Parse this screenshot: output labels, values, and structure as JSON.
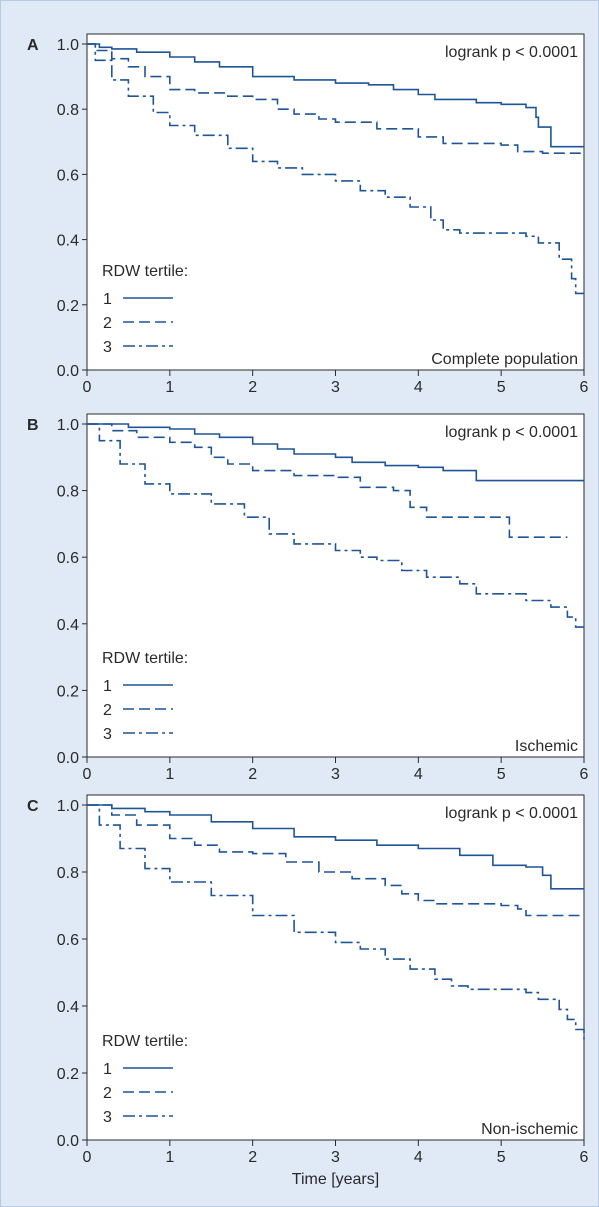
{
  "chart_data": [
    {
      "type": "line",
      "panel_letter": "A",
      "annotation": "logrank p < 0.0001",
      "subtitle": "Complete population",
      "xlabel": "",
      "ylabel": "",
      "xlim": [
        0,
        6
      ],
      "ylim": [
        0,
        1
      ],
      "xticks": [
        "0",
        "1",
        "2",
        "3",
        "4",
        "5",
        "6"
      ],
      "yticks": [
        "0.0",
        "0.2",
        "0.4",
        "0.6",
        "0.8",
        "1.0"
      ],
      "legend_title": "RDW tertile:",
      "legend_position": "bottom-left",
      "grid": false,
      "series": [
        {
          "name": "1",
          "style": "solid",
          "points": [
            [
              0,
              1.0
            ],
            [
              0.15,
              0.99
            ],
            [
              0.3,
              0.985
            ],
            [
              0.6,
              0.975
            ],
            [
              1.0,
              0.96
            ],
            [
              1.3,
              0.945
            ],
            [
              1.6,
              0.93
            ],
            [
              2.0,
              0.9
            ],
            [
              2.5,
              0.89
            ],
            [
              3.0,
              0.88
            ],
            [
              3.4,
              0.875
            ],
            [
              3.7,
              0.86
            ],
            [
              4.0,
              0.845
            ],
            [
              4.2,
              0.83
            ],
            [
              4.7,
              0.82
            ],
            [
              5.0,
              0.815
            ],
            [
              5.3,
              0.805
            ],
            [
              5.42,
              0.775
            ],
            [
              5.45,
              0.745
            ],
            [
              5.55,
              0.745
            ],
            [
              5.6,
              0.685
            ],
            [
              6.0,
              0.685
            ]
          ]
        },
        {
          "name": "2",
          "style": "dashed",
          "points": [
            [
              0,
              1.0
            ],
            [
              0.1,
              0.98
            ],
            [
              0.3,
              0.955
            ],
            [
              0.5,
              0.93
            ],
            [
              0.7,
              0.9
            ],
            [
              1.0,
              0.86
            ],
            [
              1.3,
              0.85
            ],
            [
              1.7,
              0.84
            ],
            [
              2.0,
              0.83
            ],
            [
              2.3,
              0.8
            ],
            [
              2.5,
              0.785
            ],
            [
              2.8,
              0.77
            ],
            [
              3.0,
              0.76
            ],
            [
              3.5,
              0.74
            ],
            [
              4.0,
              0.715
            ],
            [
              4.3,
              0.695
            ],
            [
              5.0,
              0.69
            ],
            [
              5.2,
              0.67
            ],
            [
              5.5,
              0.665
            ],
            [
              6.0,
              0.665
            ]
          ]
        },
        {
          "name": "3",
          "style": "dashdot",
          "points": [
            [
              0,
              1.0
            ],
            [
              0.1,
              0.95
            ],
            [
              0.3,
              0.89
            ],
            [
              0.5,
              0.84
            ],
            [
              0.8,
              0.79
            ],
            [
              1.0,
              0.75
            ],
            [
              1.3,
              0.72
            ],
            [
              1.7,
              0.68
            ],
            [
              2.0,
              0.64
            ],
            [
              2.3,
              0.62
            ],
            [
              2.6,
              0.6
            ],
            [
              3.0,
              0.58
            ],
            [
              3.3,
              0.55
            ],
            [
              3.6,
              0.53
            ],
            [
              3.9,
              0.5
            ],
            [
              4.15,
              0.46
            ],
            [
              4.3,
              0.43
            ],
            [
              4.5,
              0.42
            ],
            [
              5.0,
              0.42
            ],
            [
              5.3,
              0.41
            ],
            [
              5.45,
              0.39
            ],
            [
              5.7,
              0.34
            ],
            [
              5.85,
              0.28
            ],
            [
              5.9,
              0.235
            ],
            [
              6.0,
              0.235
            ]
          ]
        }
      ]
    },
    {
      "type": "line",
      "panel_letter": "B",
      "annotation": "logrank p < 0.0001",
      "subtitle": "Ischemic",
      "xlabel": "",
      "ylabel": "",
      "xlim": [
        0,
        6
      ],
      "ylim": [
        0,
        1
      ],
      "xticks": [
        "0",
        "1",
        "2",
        "3",
        "4",
        "5",
        "6"
      ],
      "yticks": [
        "0.0",
        "0.2",
        "0.4",
        "0.6",
        "0.8",
        "1.0"
      ],
      "legend_title": "RDW tertile:",
      "legend_position": "bottom-left",
      "grid": false,
      "series": [
        {
          "name": "1",
          "style": "solid",
          "points": [
            [
              0,
              1.0
            ],
            [
              0.5,
              0.99
            ],
            [
              1.0,
              0.985
            ],
            [
              1.3,
              0.97
            ],
            [
              1.6,
              0.96
            ],
            [
              2.0,
              0.94
            ],
            [
              2.3,
              0.925
            ],
            [
              2.5,
              0.91
            ],
            [
              3.0,
              0.9
            ],
            [
              3.2,
              0.885
            ],
            [
              3.6,
              0.875
            ],
            [
              4.0,
              0.87
            ],
            [
              4.3,
              0.86
            ],
            [
              4.7,
              0.83
            ],
            [
              5.5,
              0.83
            ],
            [
              6.0,
              0.83
            ]
          ]
        },
        {
          "name": "2",
          "style": "dashed",
          "points": [
            [
              0,
              1.0
            ],
            [
              0.3,
              0.98
            ],
            [
              0.6,
              0.96
            ],
            [
              1.0,
              0.945
            ],
            [
              1.3,
              0.93
            ],
            [
              1.5,
              0.9
            ],
            [
              1.7,
              0.88
            ],
            [
              2.0,
              0.86
            ],
            [
              2.5,
              0.845
            ],
            [
              3.0,
              0.84
            ],
            [
              3.3,
              0.81
            ],
            [
              3.7,
              0.8
            ],
            [
              3.9,
              0.75
            ],
            [
              4.1,
              0.72
            ],
            [
              4.5,
              0.72
            ],
            [
              5.0,
              0.72
            ],
            [
              5.1,
              0.66
            ],
            [
              5.3,
              0.66
            ],
            [
              5.8,
              0.66
            ]
          ]
        },
        {
          "name": "3",
          "style": "dashdot",
          "points": [
            [
              0,
              1.0
            ],
            [
              0.15,
              0.95
            ],
            [
              0.4,
              0.88
            ],
            [
              0.7,
              0.82
            ],
            [
              1.0,
              0.79
            ],
            [
              1.5,
              0.76
            ],
            [
              1.9,
              0.72
            ],
            [
              2.2,
              0.67
            ],
            [
              2.5,
              0.64
            ],
            [
              3.0,
              0.62
            ],
            [
              3.3,
              0.6
            ],
            [
              3.5,
              0.59
            ],
            [
              3.8,
              0.56
            ],
            [
              4.1,
              0.54
            ],
            [
              4.5,
              0.52
            ],
            [
              4.7,
              0.49
            ],
            [
              5.1,
              0.49
            ],
            [
              5.3,
              0.47
            ],
            [
              5.6,
              0.45
            ],
            [
              5.8,
              0.42
            ],
            [
              5.9,
              0.39
            ],
            [
              6.0,
              0.39
            ]
          ]
        }
      ]
    },
    {
      "type": "line",
      "panel_letter": "C",
      "annotation": "logrank p < 0.0001",
      "subtitle": "Non-ischemic",
      "xlabel": "Time [years]",
      "ylabel": "",
      "xlim": [
        0,
        6
      ],
      "ylim": [
        0,
        1
      ],
      "xticks": [
        "0",
        "1",
        "2",
        "3",
        "4",
        "5",
        "6"
      ],
      "yticks": [
        "0.0",
        "0.2",
        "0.4",
        "0.6",
        "0.8",
        "1.0"
      ],
      "legend_title": "RDW tertile:",
      "legend_position": "bottom-left",
      "grid": false,
      "series": [
        {
          "name": "1",
          "style": "solid",
          "points": [
            [
              0,
              1.0
            ],
            [
              0.3,
              0.99
            ],
            [
              0.7,
              0.98
            ],
            [
              1.0,
              0.97
            ],
            [
              1.5,
              0.95
            ],
            [
              2.0,
              0.93
            ],
            [
              2.5,
              0.905
            ],
            [
              3.0,
              0.895
            ],
            [
              3.5,
              0.88
            ],
            [
              4.0,
              0.87
            ],
            [
              4.5,
              0.85
            ],
            [
              4.9,
              0.82
            ],
            [
              5.3,
              0.815
            ],
            [
              5.5,
              0.79
            ],
            [
              5.6,
              0.75
            ],
            [
              6.0,
              0.75
            ]
          ]
        },
        {
          "name": "2",
          "style": "dashed",
          "points": [
            [
              0,
              1.0
            ],
            [
              0.3,
              0.97
            ],
            [
              0.6,
              0.94
            ],
            [
              1.0,
              0.9
            ],
            [
              1.3,
              0.88
            ],
            [
              1.6,
              0.86
            ],
            [
              2.0,
              0.855
            ],
            [
              2.4,
              0.83
            ],
            [
              2.8,
              0.8
            ],
            [
              3.2,
              0.78
            ],
            [
              3.6,
              0.76
            ],
            [
              3.8,
              0.735
            ],
            [
              4.0,
              0.715
            ],
            [
              4.2,
              0.705
            ],
            [
              4.8,
              0.705
            ],
            [
              5.0,
              0.7
            ],
            [
              5.2,
              0.69
            ],
            [
              5.3,
              0.67
            ],
            [
              6.0,
              0.67
            ]
          ]
        },
        {
          "name": "3",
          "style": "dashdot",
          "points": [
            [
              0,
              1.0
            ],
            [
              0.15,
              0.94
            ],
            [
              0.4,
              0.87
            ],
            [
              0.7,
              0.81
            ],
            [
              1.0,
              0.77
            ],
            [
              1.5,
              0.73
            ],
            [
              2.0,
              0.67
            ],
            [
              2.5,
              0.62
            ],
            [
              3.0,
              0.59
            ],
            [
              3.3,
              0.57
            ],
            [
              3.6,
              0.54
            ],
            [
              3.9,
              0.51
            ],
            [
              4.2,
              0.48
            ],
            [
              4.4,
              0.46
            ],
            [
              4.6,
              0.45
            ],
            [
              5.0,
              0.45
            ],
            [
              5.3,
              0.44
            ],
            [
              5.45,
              0.42
            ],
            [
              5.7,
              0.39
            ],
            [
              5.8,
              0.36
            ],
            [
              5.9,
              0.33
            ],
            [
              6.0,
              0.3
            ]
          ]
        }
      ]
    }
  ],
  "colors": {
    "line": "#1f5597",
    "axis": "#2a2a2a",
    "background": "#dfeaf6",
    "plot_background": "#ffffff"
  }
}
